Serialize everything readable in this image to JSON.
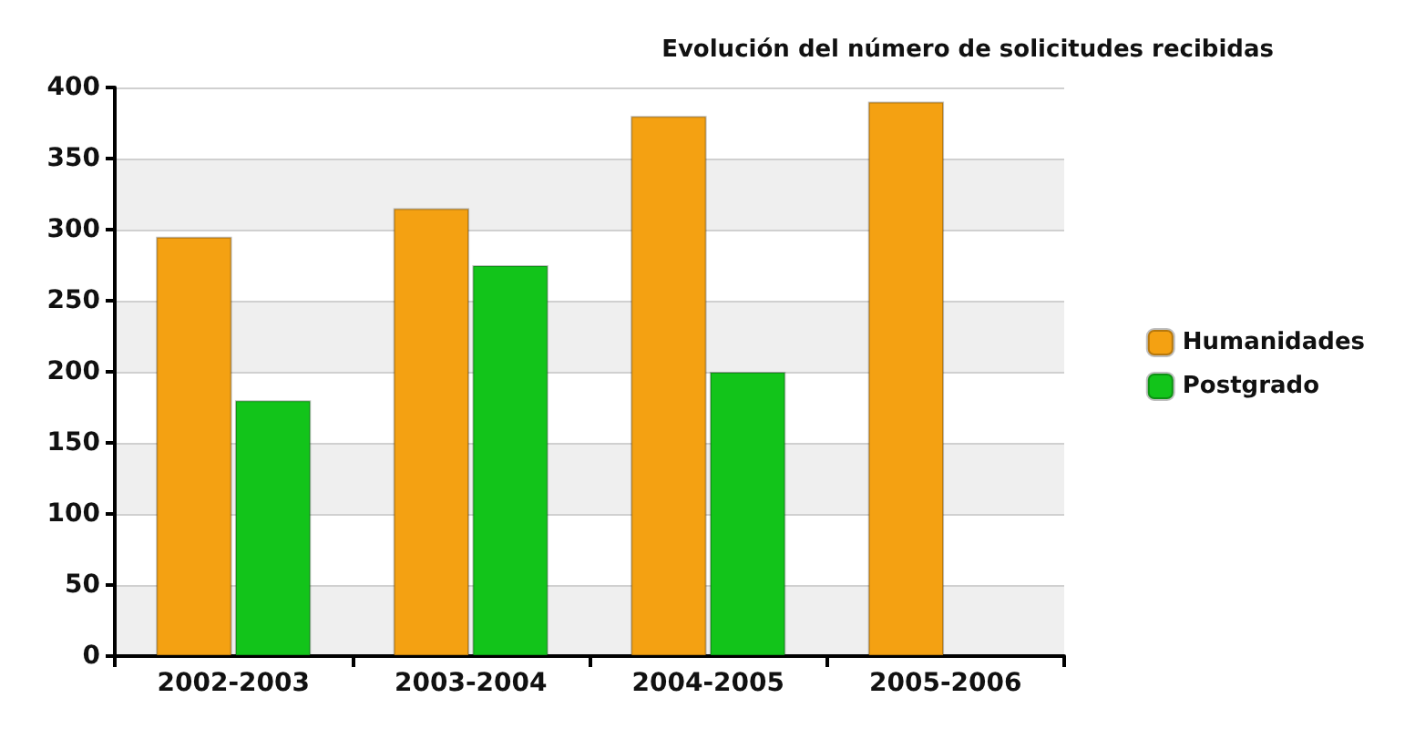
{
  "chart_data": {
    "type": "bar",
    "title": "Evolución del número de solicitudes recibidas",
    "categories": [
      "2002-2003",
      "2003-2004",
      "2004-2005",
      "2005-2006"
    ],
    "series": [
      {
        "name": "Humanidades",
        "color": "#f4a112",
        "values": [
          295,
          315,
          380,
          390
        ]
      },
      {
        "name": "Postgrado",
        "color": "#12c41a",
        "values": [
          180,
          275,
          200,
          null
        ]
      }
    ],
    "ylim": [
      0,
      400
    ],
    "yticks": [
      0,
      50,
      100,
      150,
      200,
      250,
      300,
      350,
      400
    ],
    "grid": "y",
    "legend": "right"
  }
}
